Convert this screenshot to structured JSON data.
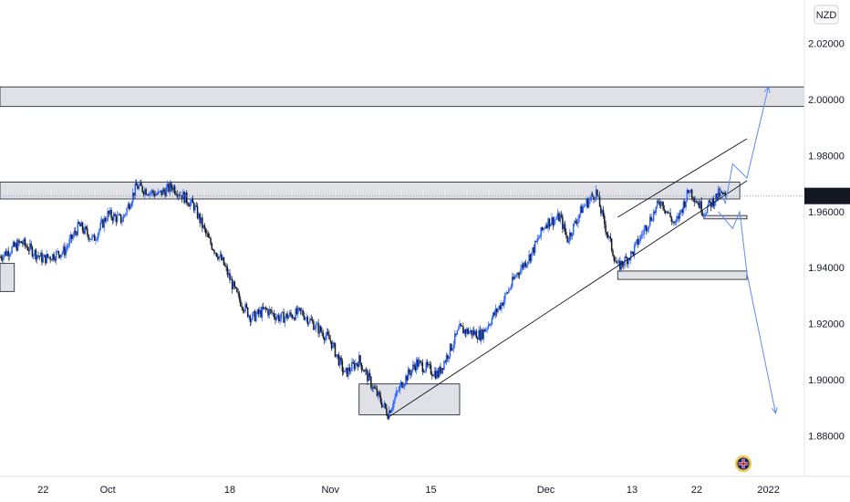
{
  "chart_data": {
    "type": "candlestick",
    "currency": "NZD",
    "current_price": 1.96558,
    "current_price_label": "1.96558",
    "y_ticks": [
      {
        "value": 2.02,
        "label": "2.02000"
      },
      {
        "value": 2.0,
        "label": "2.00000"
      },
      {
        "value": 1.98,
        "label": "1.98000"
      },
      {
        "value": 1.96,
        "label": "1.96000"
      },
      {
        "value": 1.94,
        "label": "1.94000"
      },
      {
        "value": 1.92,
        "label": "1.92000"
      },
      {
        "value": 1.9,
        "label": "1.90000"
      },
      {
        "value": 1.88,
        "label": "1.88000"
      }
    ],
    "ylim": [
      1.8655,
      2.0355
    ],
    "x_ticks": [
      {
        "date": "2021-09-22",
        "label": "22"
      },
      {
        "date": "2021-10-01",
        "label": "Oct"
      },
      {
        "date": "2021-10-18",
        "label": "18"
      },
      {
        "date": "2021-11-01",
        "label": "Nov"
      },
      {
        "date": "2021-11-15",
        "label": "15"
      },
      {
        "date": "2021-12-01",
        "label": "Dec"
      },
      {
        "date": "2021-12-13",
        "label": "13"
      },
      {
        "date": "2021-12-22",
        "label": "22"
      },
      {
        "date": "2022-01-01",
        "label": "2022"
      }
    ],
    "price_path": [
      [
        "2021-09-16",
        1.944
      ],
      [
        "2021-09-19",
        1.949
      ],
      [
        "2021-09-22",
        1.943
      ],
      [
        "2021-09-25",
        1.946
      ],
      [
        "2021-09-27",
        1.955
      ],
      [
        "2021-09-29",
        1.95
      ],
      [
        "2021-10-01",
        1.959
      ],
      [
        "2021-10-03",
        1.957
      ],
      [
        "2021-10-05",
        1.969
      ],
      [
        "2021-10-08",
        1.966
      ],
      [
        "2021-10-10",
        1.969
      ],
      [
        "2021-10-13",
        1.962
      ],
      [
        "2021-10-15",
        1.95
      ],
      [
        "2021-10-17",
        1.942
      ],
      [
        "2021-10-19",
        1.93
      ],
      [
        "2021-10-21",
        1.922
      ],
      [
        "2021-10-23",
        1.925
      ],
      [
        "2021-10-25",
        1.922
      ],
      [
        "2021-10-28",
        1.924
      ],
      [
        "2021-10-30",
        1.919
      ],
      [
        "2021-11-01",
        1.914
      ],
      [
        "2021-11-03",
        1.902
      ],
      [
        "2021-11-05",
        1.907
      ],
      [
        "2021-11-07",
        1.897
      ],
      [
        "2021-11-09",
        1.888
      ],
      [
        "2021-11-11",
        1.899
      ],
      [
        "2021-11-13",
        1.906
      ],
      [
        "2021-11-16",
        1.902
      ],
      [
        "2021-11-19",
        1.918
      ],
      [
        "2021-11-22",
        1.916
      ],
      [
        "2021-11-25",
        1.928
      ],
      [
        "2021-11-27",
        1.938
      ],
      [
        "2021-11-29",
        1.945
      ],
      [
        "2021-12-01",
        1.956
      ],
      [
        "2021-12-03",
        1.958
      ],
      [
        "2021-12-04",
        1.95
      ],
      [
        "2021-12-06",
        1.961
      ],
      [
        "2021-12-08",
        1.967
      ],
      [
        "2021-12-09",
        1.957
      ],
      [
        "2021-12-11",
        1.94
      ],
      [
        "2021-12-13",
        1.945
      ],
      [
        "2021-12-15",
        1.955
      ],
      [
        "2021-12-17",
        1.964
      ],
      [
        "2021-12-19",
        1.955
      ],
      [
        "2021-12-21",
        1.968
      ],
      [
        "2021-12-23",
        1.96
      ],
      [
        "2021-12-25",
        1.966
      ],
      [
        "2021-12-26",
        1.96558
      ]
    ],
    "zones": [
      {
        "name": "resistance-2.00",
        "from": "2021-09-16",
        "to": "2022-01-06",
        "low": 1.9975,
        "high": 2.0045
      },
      {
        "name": "resistance-1.967",
        "from": "2021-09-16",
        "to": "2021-12-28",
        "low": 1.9645,
        "high": 1.9705
      },
      {
        "name": "left-demand",
        "from": "2021-09-16",
        "to": "2021-09-18",
        "low": 1.9315,
        "high": 1.9415
      },
      {
        "name": "demand-bottom",
        "from": "2021-11-05",
        "to": "2021-11-19",
        "low": 1.8875,
        "high": 1.8985
      },
      {
        "name": "demand-1.938",
        "from": "2021-12-11",
        "to": "2021-12-29",
        "low": 1.9358,
        "high": 1.9388
      },
      {
        "name": "support-1.958",
        "from": "2021-12-23",
        "to": "2021-12-29",
        "low": 1.9574,
        "high": 1.9586
      }
    ],
    "trendlines": [
      {
        "from": [
          "2021-11-09",
          1.8865
        ],
        "to": [
          "2021-12-29",
          1.971
        ],
        "color": "#131722"
      },
      {
        "from": [
          "2021-12-11",
          1.958
        ],
        "to": [
          "2021-12-29",
          1.986
        ],
        "color": "#131722"
      }
    ],
    "projection_paths": [
      {
        "points": [
          [
            "2021-12-25",
            1.968
          ],
          [
            "2021-12-26",
            1.963
          ],
          [
            "2021-12-27",
            1.977
          ],
          [
            "2021-12-29",
            1.972
          ],
          [
            "2022-01-01",
            2.0045
          ]
        ],
        "color": "#5b8def"
      },
      {
        "points": [
          [
            "2021-12-25",
            1.96
          ],
          [
            "2021-12-27",
            1.954
          ],
          [
            "2021-12-28",
            1.96
          ],
          [
            "2021-12-29",
            1.938
          ],
          [
            "2022-01-02",
            1.888
          ]
        ],
        "color": "#5b8def"
      }
    ],
    "colors": {
      "up": "#2962ff",
      "down": "#131722",
      "zone_fill": "#dfe1e6",
      "zone_border": "#131722",
      "projection": "#5b8def",
      "price_line": "#9aa0a8"
    }
  }
}
